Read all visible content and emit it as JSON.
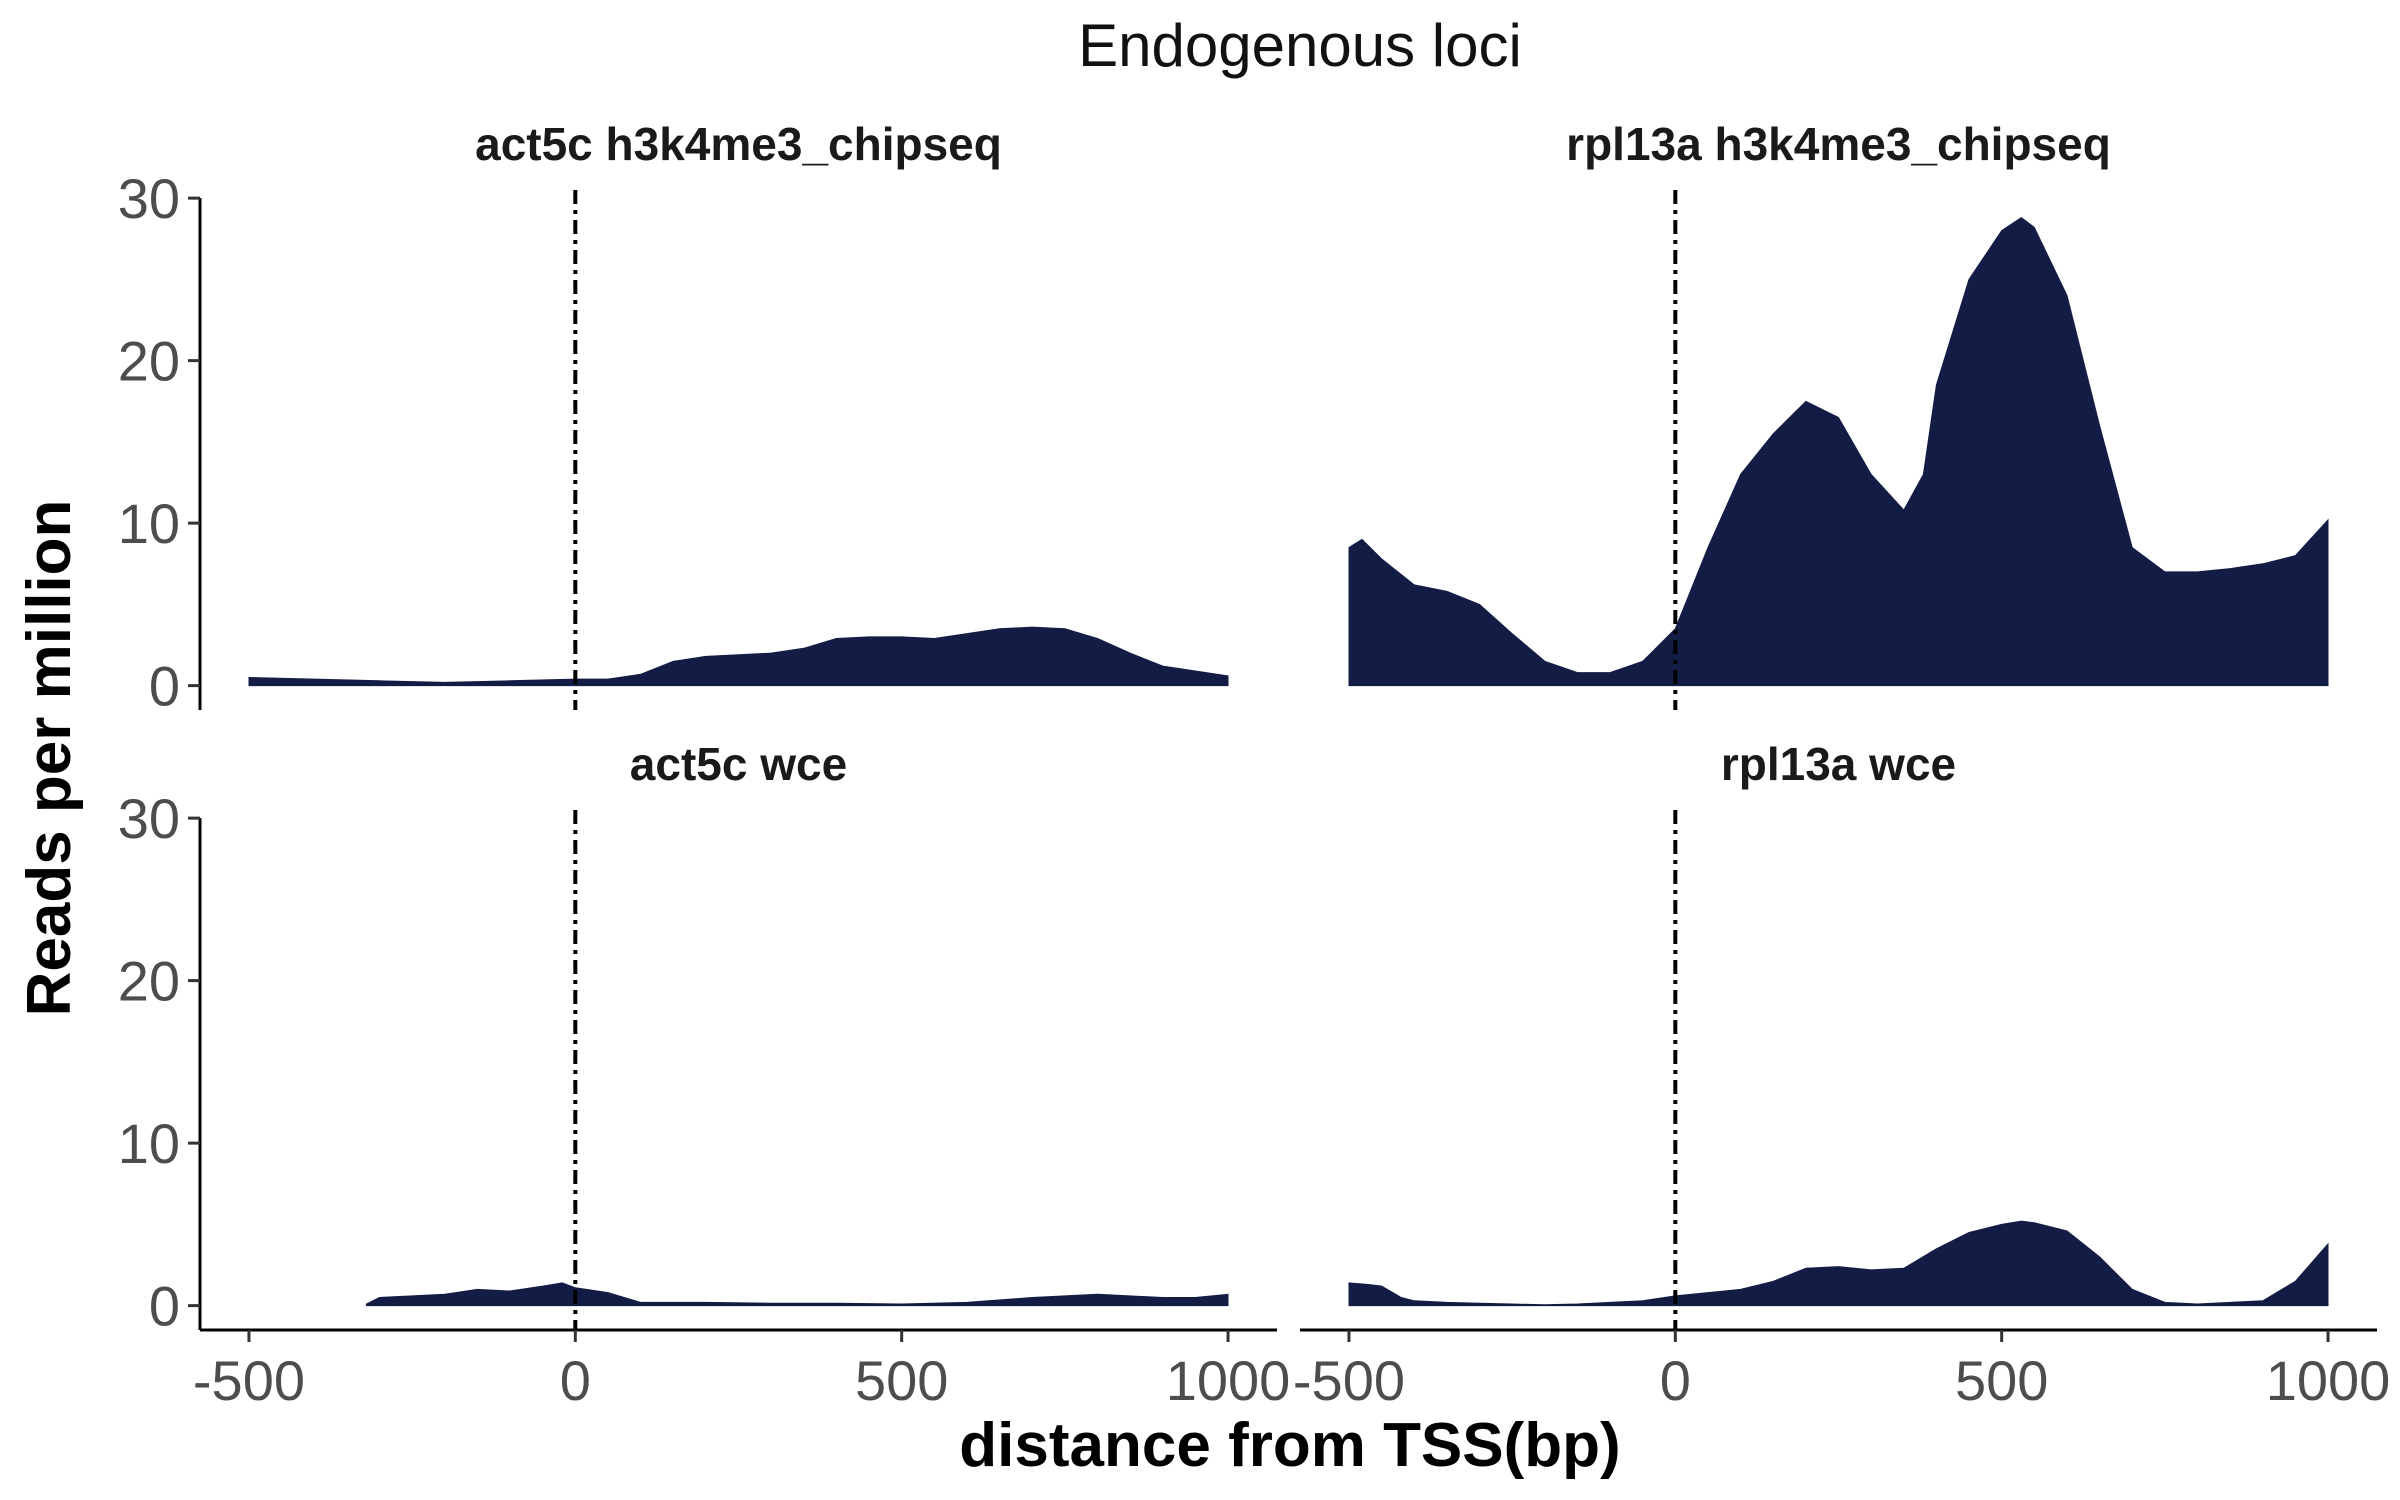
{
  "chart_data": {
    "type": "area",
    "title": "Endogenous loci",
    "xlabel": "distance from TSS(bp)",
    "ylabel": "Reads per million",
    "xlim": [
      -575,
      1075
    ],
    "ylim": [
      -1.5,
      30.5
    ],
    "x_ticks": [
      -500,
      0,
      500,
      1000
    ],
    "y_ticks": [
      0,
      10,
      20,
      30
    ],
    "x_tick_labels": [
      "-500",
      "0",
      "500",
      "1000"
    ],
    "y_tick_labels": [
      "0",
      "10",
      "20",
      "30"
    ],
    "reference_line_x": 0,
    "fill_color": "#121c45",
    "grid": false,
    "panels": [
      {
        "label": "act5c h3k4me3_chipseq",
        "row": 0,
        "col": 0,
        "x": [
          -500,
          -400,
          -300,
          -200,
          -100,
          0,
          50,
          100,
          150,
          200,
          250,
          300,
          350,
          400,
          450,
          500,
          550,
          600,
          650,
          700,
          750,
          800,
          850,
          900,
          950,
          1000
        ],
        "y": [
          0.5,
          0.4,
          0.3,
          0.2,
          0.3,
          0.4,
          0.4,
          0.7,
          1.5,
          1.8,
          1.9,
          2.0,
          2.3,
          2.9,
          3.0,
          3.0,
          2.9,
          3.2,
          3.5,
          3.6,
          3.5,
          2.9,
          2.0,
          1.2,
          0.9,
          0.6
        ]
      },
      {
        "label": "rpl13a h3k4me3_chipseq",
        "row": 0,
        "col": 1,
        "x": [
          -500,
          -480,
          -450,
          -400,
          -350,
          -300,
          -250,
          -200,
          -150,
          -100,
          -50,
          0,
          50,
          100,
          150,
          200,
          250,
          300,
          350,
          380,
          400,
          450,
          500,
          530,
          550,
          600,
          650,
          700,
          750,
          800,
          850,
          900,
          950,
          1000
        ],
        "y": [
          8.5,
          9.0,
          7.8,
          6.2,
          5.8,
          5.0,
          3.2,
          1.5,
          0.8,
          0.8,
          1.5,
          3.5,
          8.5,
          13.0,
          15.5,
          17.5,
          16.5,
          13.0,
          10.8,
          13.0,
          18.5,
          25.0,
          28.0,
          28.8,
          28.2,
          24.0,
          16.0,
          8.5,
          7.0,
          7.0,
          7.2,
          7.5,
          8.0,
          10.2
        ]
      },
      {
        "label": "act5c wce",
        "row": 1,
        "col": 0,
        "x": [
          -320,
          -300,
          -250,
          -200,
          -150,
          -100,
          -50,
          -20,
          0,
          50,
          100,
          200,
          300,
          400,
          500,
          600,
          700,
          750,
          800,
          900,
          950,
          1000
        ],
        "y": [
          0.1,
          0.5,
          0.6,
          0.7,
          1.0,
          0.9,
          1.2,
          1.4,
          1.1,
          0.8,
          0.2,
          0.2,
          0.15,
          0.15,
          0.1,
          0.2,
          0.5,
          0.6,
          0.7,
          0.5,
          0.5,
          0.7
        ]
      },
      {
        "label": "rpl13a wce",
        "row": 1,
        "col": 1,
        "x": [
          -500,
          -470,
          -450,
          -420,
          -400,
          -350,
          -300,
          -250,
          -200,
          -150,
          -100,
          -50,
          0,
          50,
          100,
          150,
          200,
          250,
          300,
          350,
          400,
          450,
          500,
          530,
          550,
          600,
          650,
          700,
          750,
          800,
          850,
          900,
          950,
          1000
        ],
        "y": [
          1.4,
          1.3,
          1.2,
          0.5,
          0.3,
          0.2,
          0.15,
          0.1,
          0.05,
          0.1,
          0.2,
          0.3,
          0.6,
          0.8,
          1.0,
          1.5,
          2.3,
          2.4,
          2.2,
          2.3,
          3.5,
          4.5,
          5.0,
          5.2,
          5.1,
          4.6,
          3.0,
          1.0,
          0.2,
          0.1,
          0.2,
          0.3,
          1.5,
          3.8
        ]
      }
    ]
  }
}
